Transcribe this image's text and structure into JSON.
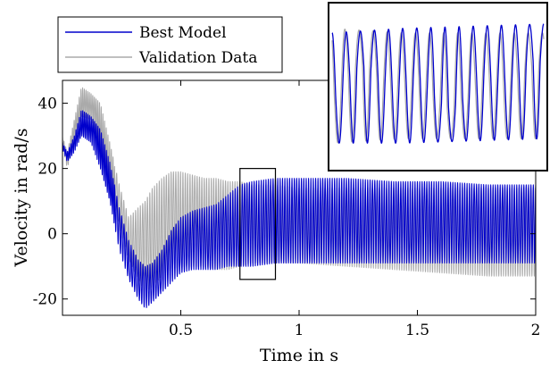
{
  "chart_data": {
    "type": "line",
    "xlabel": "Time in s",
    "ylabel": "Velocity in rad/s",
    "xlim": [
      0,
      2
    ],
    "ylim": [
      -25,
      47
    ],
    "xticks": [
      0.5,
      1,
      1.5,
      2
    ],
    "xtick_labels": [
      "0.5",
      "1",
      "1.5",
      "2"
    ],
    "yticks": [
      -20,
      0,
      20,
      40
    ],
    "ytick_labels": [
      "-20",
      "0",
      "20",
      "40"
    ],
    "grid": false,
    "legend_position": "top-left",
    "series": [
      {
        "name": "Best Model",
        "color": "#0000cc",
        "envelope_x": [
          0,
          0.02,
          0.05,
          0.08,
          0.12,
          0.16,
          0.2,
          0.24,
          0.28,
          0.32,
          0.35,
          0.38,
          0.42,
          0.46,
          0.5,
          0.55,
          0.6,
          0.65,
          0.7,
          0.75,
          0.8,
          0.9,
          1.0,
          1.2,
          1.4,
          1.6,
          1.8,
          2.0
        ],
        "envelope_upper": [
          28,
          25,
          30,
          38,
          36,
          32,
          22,
          8,
          -2,
          -8,
          -10,
          -9,
          -5,
          1,
          5,
          7,
          8,
          9,
          12,
          15,
          16,
          17,
          17,
          17,
          16,
          16,
          15,
          15
        ],
        "envelope_lower": [
          26,
          22,
          25,
          30,
          28,
          20,
          10,
          -5,
          -14,
          -20,
          -23,
          -21,
          -18,
          -15,
          -12,
          -11,
          -11,
          -11,
          -10,
          -10,
          -10,
          -9,
          -9,
          -9,
          -9,
          -9,
          -9,
          -9
        ]
      },
      {
        "name": "Validation Data",
        "color": "#aaaaaa",
        "envelope_x": [
          0,
          0.02,
          0.05,
          0.08,
          0.12,
          0.16,
          0.2,
          0.24,
          0.28,
          0.32,
          0.35,
          0.38,
          0.42,
          0.46,
          0.5,
          0.55,
          0.6,
          0.65,
          0.7,
          0.75,
          0.8,
          0.9,
          1.0,
          1.2,
          1.4,
          1.6,
          1.8,
          2.0
        ],
        "envelope_upper": [
          30,
          25,
          35,
          45,
          43,
          40,
          28,
          15,
          5,
          8,
          10,
          14,
          17,
          19,
          19,
          18,
          17,
          17,
          16,
          16,
          15,
          15,
          14,
          14,
          14,
          14,
          14,
          14
        ],
        "envelope_lower": [
          27,
          20,
          28,
          36,
          35,
          25,
          15,
          2,
          -8,
          -14,
          -18,
          -16,
          -13,
          -11,
          -10,
          -10,
          -10,
          -11,
          -11,
          -10,
          -9,
          -9,
          -9,
          -10,
          -11,
          -12,
          -13,
          -13
        ]
      }
    ],
    "zoom_region": {
      "x": [
        0.75,
        0.9
      ],
      "y": [
        -14,
        20
      ]
    }
  }
}
